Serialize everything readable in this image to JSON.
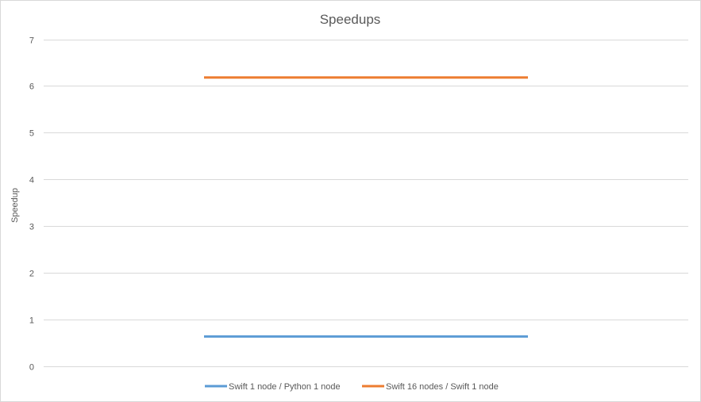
{
  "chart_data": {
    "type": "line",
    "title": "Speedups",
    "xlabel": "",
    "ylabel": "Speedup",
    "ylim": [
      0,
      7
    ],
    "yticks": [
      0,
      1,
      2,
      3,
      4,
      5,
      6,
      7
    ],
    "x": [
      0,
      1
    ],
    "grid": true,
    "legend": "bottom",
    "series": [
      {
        "name": "Swift 1 node / Python 1 node",
        "values": [
          0.63,
          0.63
        ],
        "color": "#5b9bd5"
      },
      {
        "name": "Swift 16 nodes / Swift 1 node",
        "values": [
          6.18,
          6.18
        ],
        "color": "#ed7d31"
      }
    ]
  }
}
